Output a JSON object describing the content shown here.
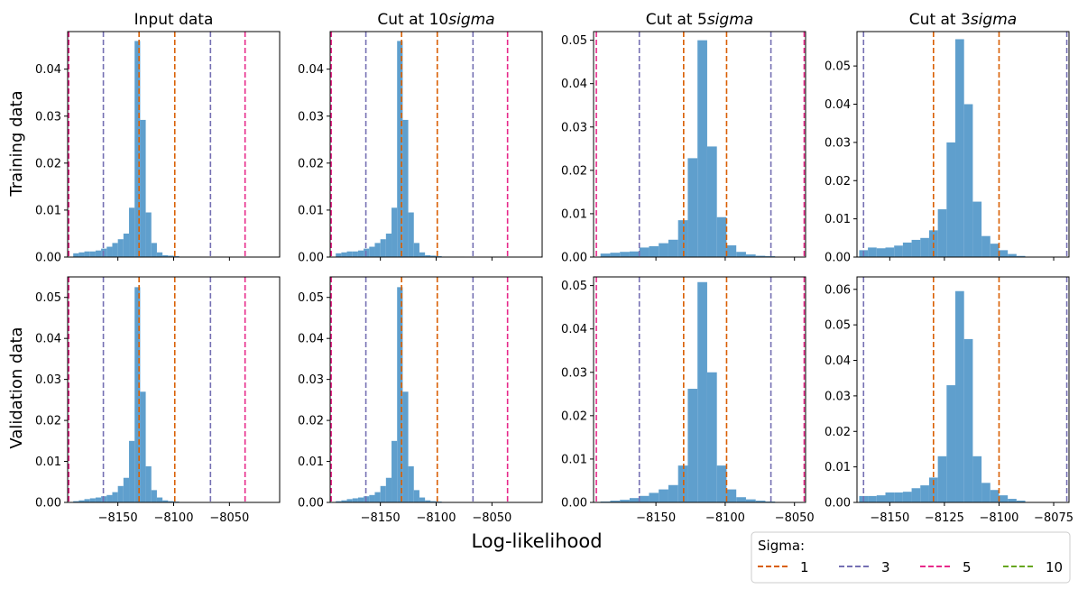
{
  "figure": {
    "xlabel": "Log-likelihood",
    "row_labels": [
      "Training data",
      "Validation data"
    ],
    "col_titles": [
      {
        "prefix": "Input data",
        "italic": ""
      },
      {
        "prefix": "Cut at 10",
        "italic": "sigma"
      },
      {
        "prefix": "Cut at 5",
        "italic": "sigma"
      },
      {
        "prefix": "Cut at 3",
        "italic": "sigma"
      }
    ],
    "hist_color": "#5f9fcd",
    "legend": {
      "title": "Sigma:",
      "location": "bottom-right",
      "entries": [
        {
          "label": "1",
          "color": "#d95f02"
        },
        {
          "label": "3",
          "color": "#7570b3"
        },
        {
          "label": "5",
          "color": "#e7298a"
        },
        {
          "label": "10",
          "color": "#66a61e"
        }
      ]
    }
  },
  "chart_data": [
    {
      "type": "bar",
      "row": "Training data",
      "title": "Input data",
      "xlim": [
        -8195,
        -8005
      ],
      "ylim": [
        0,
        0.048
      ],
      "yticks": [
        0.0,
        0.01,
        0.02,
        0.03,
        0.04
      ],
      "xticks": [
        -8150,
        -8100,
        -8050
      ],
      "xtick_labels_visible": false,
      "bin_width": 5,
      "bins": [
        [
          -8190,
          0.0008
        ],
        [
          -8185,
          0.001
        ],
        [
          -8180,
          0.0012
        ],
        [
          -8175,
          0.0012
        ],
        [
          -8170,
          0.0014
        ],
        [
          -8165,
          0.0018
        ],
        [
          -8160,
          0.0022
        ],
        [
          -8155,
          0.003
        ],
        [
          -8150,
          0.0038
        ],
        [
          -8145,
          0.005
        ],
        [
          -8140,
          0.0105
        ],
        [
          -8135,
          0.046
        ],
        [
          -8130,
          0.0292
        ],
        [
          -8125,
          0.0095
        ],
        [
          -8120,
          0.003
        ],
        [
          -8115,
          0.001
        ],
        [
          -8110,
          0.0004
        ],
        [
          -8105,
          0.0003
        ],
        [
          -8100,
          0.0002
        ],
        [
          -8095,
          0.0001
        ],
        [
          -8090,
          0.0001
        ],
        [
          -8085,
          0.0001
        ],
        [
          -8080,
          0.0001
        ]
      ],
      "vlines": [
        {
          "x": -8131,
          "sigma": "1"
        },
        {
          "x": -8099,
          "sigma": "1"
        },
        {
          "x": -8163,
          "sigma": "3"
        },
        {
          "x": -8067,
          "sigma": "3"
        },
        {
          "x": -8194,
          "sigma": "5"
        },
        {
          "x": -8036,
          "sigma": "5"
        }
      ]
    },
    {
      "type": "bar",
      "row": "Training data",
      "title": "Cut at 10sigma",
      "xlim": [
        -8195,
        -8005
      ],
      "ylim": [
        0,
        0.048
      ],
      "yticks": [
        0.0,
        0.01,
        0.02,
        0.03,
        0.04
      ],
      "xticks": [
        -8150,
        -8100,
        -8050
      ],
      "xtick_labels_visible": false,
      "bin_width": 5,
      "bins": [
        [
          -8190,
          0.0008
        ],
        [
          -8185,
          0.001
        ],
        [
          -8180,
          0.0012
        ],
        [
          -8175,
          0.0012
        ],
        [
          -8170,
          0.0014
        ],
        [
          -8165,
          0.0018
        ],
        [
          -8160,
          0.0022
        ],
        [
          -8155,
          0.003
        ],
        [
          -8150,
          0.0038
        ],
        [
          -8145,
          0.005
        ],
        [
          -8140,
          0.0105
        ],
        [
          -8135,
          0.046
        ],
        [
          -8130,
          0.0292
        ],
        [
          -8125,
          0.0095
        ],
        [
          -8120,
          0.003
        ],
        [
          -8115,
          0.001
        ],
        [
          -8110,
          0.0004
        ],
        [
          -8105,
          0.0003
        ],
        [
          -8100,
          0.0002
        ],
        [
          -8095,
          0.0001
        ],
        [
          -8090,
          0.0001
        ],
        [
          -8085,
          0.0001
        ],
        [
          -8080,
          0.0001
        ]
      ],
      "vlines": [
        {
          "x": -8131,
          "sigma": "1"
        },
        {
          "x": -8099,
          "sigma": "1"
        },
        {
          "x": -8163,
          "sigma": "3"
        },
        {
          "x": -8067,
          "sigma": "3"
        },
        {
          "x": -8194,
          "sigma": "5"
        },
        {
          "x": -8036,
          "sigma": "5"
        }
      ]
    },
    {
      "type": "bar",
      "row": "Training data",
      "title": "Cut at 5sigma",
      "xlim": [
        -8195,
        -8042
      ],
      "ylim": [
        0,
        0.052
      ],
      "yticks": [
        0.0,
        0.01,
        0.02,
        0.03,
        0.04,
        0.05
      ],
      "xticks": [
        -8150,
        -8100,
        -8050
      ],
      "xtick_labels_visible": false,
      "bin_width": 7,
      "bins": [
        [
          -8190,
          0.0008
        ],
        [
          -8183,
          0.001
        ],
        [
          -8176,
          0.0012
        ],
        [
          -8169,
          0.0013
        ],
        [
          -8162,
          0.0022
        ],
        [
          -8155,
          0.0025
        ],
        [
          -8148,
          0.0032
        ],
        [
          -8141,
          0.004
        ],
        [
          -8134,
          0.0085
        ],
        [
          -8127,
          0.0228
        ],
        [
          -8120,
          0.05
        ],
        [
          -8113,
          0.0255
        ],
        [
          -8106,
          0.0092
        ],
        [
          -8099,
          0.0027
        ],
        [
          -8092,
          0.0012
        ],
        [
          -8085,
          0.0006
        ],
        [
          -8078,
          0.0003
        ],
        [
          -8071,
          0.0002
        ],
        [
          -8064,
          0.0001
        ],
        [
          -8057,
          0.0001
        ]
      ],
      "vlines": [
        {
          "x": -8130,
          "sigma": "1"
        },
        {
          "x": -8099,
          "sigma": "1"
        },
        {
          "x": -8162,
          "sigma": "3"
        },
        {
          "x": -8067,
          "sigma": "3"
        },
        {
          "x": -8193,
          "sigma": "5"
        },
        {
          "x": -8043,
          "sigma": "5"
        }
      ]
    },
    {
      "type": "bar",
      "row": "Training data",
      "title": "Cut at 3sigma",
      "xlim": [
        -8165,
        -8068
      ],
      "ylim": [
        0,
        0.059
      ],
      "yticks": [
        0.0,
        0.01,
        0.02,
        0.03,
        0.04,
        0.05
      ],
      "xticks": [
        -8150,
        -8125,
        -8100,
        -8075
      ],
      "xtick_labels_visible": false,
      "bin_width": 4,
      "bins": [
        [
          -8164,
          0.0018
        ],
        [
          -8160,
          0.0025
        ],
        [
          -8156,
          0.0023
        ],
        [
          -8152,
          0.0025
        ],
        [
          -8148,
          0.003
        ],
        [
          -8144,
          0.0038
        ],
        [
          -8140,
          0.0045
        ],
        [
          -8136,
          0.005
        ],
        [
          -8132,
          0.007
        ],
        [
          -8128,
          0.0125
        ],
        [
          -8124,
          0.03
        ],
        [
          -8120,
          0.057
        ],
        [
          -8116,
          0.04
        ],
        [
          -8112,
          0.0145
        ],
        [
          -8108,
          0.0055
        ],
        [
          -8104,
          0.0035
        ],
        [
          -8100,
          0.0018
        ],
        [
          -8096,
          0.0008
        ],
        [
          -8092,
          0.0003
        ]
      ],
      "vlines": [
        {
          "x": -8130,
          "sigma": "1"
        },
        {
          "x": -8100,
          "sigma": "1"
        },
        {
          "x": -8162,
          "sigma": "3"
        },
        {
          "x": -8069,
          "sigma": "3"
        }
      ]
    },
    {
      "type": "bar",
      "row": "Validation data",
      "title": "Input data",
      "xlim": [
        -8195,
        -8005
      ],
      "ylim": [
        0,
        0.055
      ],
      "yticks": [
        0.0,
        0.01,
        0.02,
        0.03,
        0.04,
        0.05
      ],
      "xticks": [
        -8150,
        -8100,
        -8050
      ],
      "xtick_labels_visible": true,
      "bin_width": 5,
      "bins": [
        [
          -8190,
          0.0003
        ],
        [
          -8185,
          0.0005
        ],
        [
          -8180,
          0.0008
        ],
        [
          -8175,
          0.001
        ],
        [
          -8170,
          0.0012
        ],
        [
          -8165,
          0.0015
        ],
        [
          -8160,
          0.0018
        ],
        [
          -8155,
          0.0025
        ],
        [
          -8150,
          0.004
        ],
        [
          -8145,
          0.006
        ],
        [
          -8140,
          0.015
        ],
        [
          -8135,
          0.0525
        ],
        [
          -8130,
          0.027
        ],
        [
          -8125,
          0.0088
        ],
        [
          -8120,
          0.003
        ],
        [
          -8115,
          0.0012
        ],
        [
          -8110,
          0.0005
        ],
        [
          -8105,
          0.0003
        ],
        [
          -8100,
          0.0002
        ],
        [
          -8095,
          0.0001
        ]
      ],
      "vlines": [
        {
          "x": -8131,
          "sigma": "1"
        },
        {
          "x": -8099,
          "sigma": "1"
        },
        {
          "x": -8163,
          "sigma": "3"
        },
        {
          "x": -8067,
          "sigma": "3"
        },
        {
          "x": -8194,
          "sigma": "5"
        },
        {
          "x": -8036,
          "sigma": "5"
        }
      ]
    },
    {
      "type": "bar",
      "row": "Validation data",
      "title": "Cut at 10sigma",
      "xlim": [
        -8195,
        -8005
      ],
      "ylim": [
        0,
        0.055
      ],
      "yticks": [
        0.0,
        0.01,
        0.02,
        0.03,
        0.04,
        0.05
      ],
      "xticks": [
        -8150,
        -8100,
        -8050
      ],
      "xtick_labels_visible": true,
      "bin_width": 5,
      "bins": [
        [
          -8190,
          0.0003
        ],
        [
          -8185,
          0.0005
        ],
        [
          -8180,
          0.0008
        ],
        [
          -8175,
          0.001
        ],
        [
          -8170,
          0.0012
        ],
        [
          -8165,
          0.0015
        ],
        [
          -8160,
          0.0018
        ],
        [
          -8155,
          0.0025
        ],
        [
          -8150,
          0.004
        ],
        [
          -8145,
          0.006
        ],
        [
          -8140,
          0.015
        ],
        [
          -8135,
          0.0525
        ],
        [
          -8130,
          0.027
        ],
        [
          -8125,
          0.0088
        ],
        [
          -8120,
          0.003
        ],
        [
          -8115,
          0.0012
        ],
        [
          -8110,
          0.0005
        ],
        [
          -8105,
          0.0003
        ],
        [
          -8100,
          0.0002
        ],
        [
          -8095,
          0.0001
        ]
      ],
      "vlines": [
        {
          "x": -8131,
          "sigma": "1"
        },
        {
          "x": -8099,
          "sigma": "1"
        },
        {
          "x": -8163,
          "sigma": "3"
        },
        {
          "x": -8067,
          "sigma": "3"
        },
        {
          "x": -8194,
          "sigma": "5"
        },
        {
          "x": -8036,
          "sigma": "5"
        }
      ]
    },
    {
      "type": "bar",
      "row": "Validation data",
      "title": "Cut at 5sigma",
      "xlim": [
        -8195,
        -8042
      ],
      "ylim": [
        0,
        0.052
      ],
      "yticks": [
        0.0,
        0.01,
        0.02,
        0.03,
        0.04,
        0.05
      ],
      "xticks": [
        -8150,
        -8100,
        -8050
      ],
      "xtick_labels_visible": true,
      "bin_width": 7,
      "bins": [
        [
          -8190,
          0.0002
        ],
        [
          -8183,
          0.0004
        ],
        [
          -8176,
          0.0006
        ],
        [
          -8169,
          0.001
        ],
        [
          -8162,
          0.0015
        ],
        [
          -8155,
          0.0022
        ],
        [
          -8148,
          0.003
        ],
        [
          -8141,
          0.004
        ],
        [
          -8134,
          0.0085
        ],
        [
          -8127,
          0.0262
        ],
        [
          -8120,
          0.0508
        ],
        [
          -8113,
          0.03
        ],
        [
          -8106,
          0.0085
        ],
        [
          -8099,
          0.003
        ],
        [
          -8092,
          0.0012
        ],
        [
          -8085,
          0.0007
        ],
        [
          -8078,
          0.0004
        ],
        [
          -8071,
          0.0002
        ],
        [
          -8064,
          0.0001
        ],
        [
          -8057,
          0.0001
        ]
      ],
      "vlines": [
        {
          "x": -8130,
          "sigma": "1"
        },
        {
          "x": -8099,
          "sigma": "1"
        },
        {
          "x": -8162,
          "sigma": "3"
        },
        {
          "x": -8067,
          "sigma": "3"
        },
        {
          "x": -8193,
          "sigma": "5"
        },
        {
          "x": -8043,
          "sigma": "5"
        }
      ]
    },
    {
      "type": "bar",
      "row": "Validation data",
      "title": "Cut at 3sigma",
      "xlim": [
        -8165,
        -8068
      ],
      "ylim": [
        0,
        0.0635
      ],
      "yticks": [
        0.0,
        0.01,
        0.02,
        0.03,
        0.04,
        0.05,
        0.06
      ],
      "xticks": [
        -8150,
        -8125,
        -8100,
        -8075
      ],
      "xtick_labels_visible": true,
      "bin_width": 4,
      "bins": [
        [
          -8164,
          0.0018
        ],
        [
          -8160,
          0.0018
        ],
        [
          -8156,
          0.002
        ],
        [
          -8152,
          0.0028
        ],
        [
          -8148,
          0.0028
        ],
        [
          -8144,
          0.003
        ],
        [
          -8140,
          0.004
        ],
        [
          -8136,
          0.0048
        ],
        [
          -8132,
          0.007
        ],
        [
          -8128,
          0.013
        ],
        [
          -8124,
          0.033
        ],
        [
          -8120,
          0.0595
        ],
        [
          -8116,
          0.046
        ],
        [
          -8112,
          0.013
        ],
        [
          -8108,
          0.0055
        ],
        [
          -8104,
          0.0035
        ],
        [
          -8100,
          0.002
        ],
        [
          -8096,
          0.001
        ],
        [
          -8092,
          0.0005
        ]
      ],
      "vlines": [
        {
          "x": -8130,
          "sigma": "1"
        },
        {
          "x": -8100,
          "sigma": "1"
        },
        {
          "x": -8162,
          "sigma": "3"
        },
        {
          "x": -8069,
          "sigma": "3"
        }
      ]
    }
  ]
}
